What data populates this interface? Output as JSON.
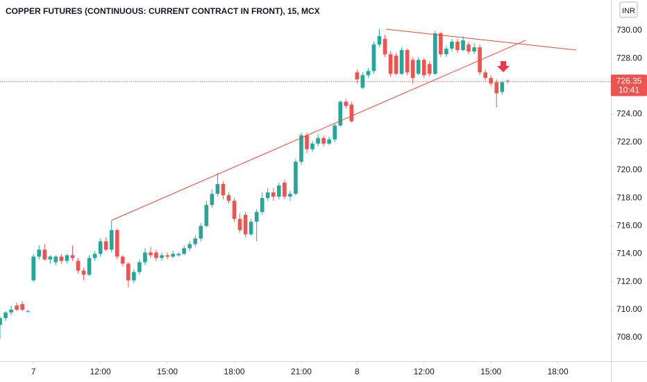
{
  "chart_data": {
    "type": "candlestick",
    "title": "COPPER FUTURES (CONTINUOUS: CURRENT CONTRACT IN FRONT), 15, MCX",
    "currency": "INR",
    "up_color": "#26a69a",
    "down_color": "#ef5350",
    "xlim": [
      0,
      109.5
    ],
    "xticks": [
      {
        "value": 6,
        "label": "7"
      },
      {
        "value": 18,
        "label": "12:00"
      },
      {
        "value": 30,
        "label": "15:00"
      },
      {
        "value": 42,
        "label": "18:00"
      },
      {
        "value": 54,
        "label": "21:00"
      },
      {
        "value": 64,
        "label": "8"
      },
      {
        "value": 76,
        "label": "12:00"
      },
      {
        "value": 88,
        "label": "15:00"
      },
      {
        "value": 100,
        "label": "18:00"
      }
    ],
    "ylim": [
      706.31,
      732.19
    ],
    "yticks": [
      {
        "value": 708,
        "label": "708.00"
      },
      {
        "value": 710,
        "label": "710.00"
      },
      {
        "value": 712,
        "label": "712.00"
      },
      {
        "value": 714,
        "label": "714.00"
      },
      {
        "value": 716,
        "label": "716.00"
      },
      {
        "value": 718,
        "label": "718.00"
      },
      {
        "value": 720,
        "label": "720.00"
      },
      {
        "value": 722,
        "label": "722.00"
      },
      {
        "value": 724,
        "label": "724.00"
      },
      {
        "value": 726,
        "label": "726.00"
      },
      {
        "value": 728,
        "label": "728.00"
      },
      {
        "value": 730,
        "label": "730.00"
      }
    ],
    "last_price": 726.35,
    "countdown": "10:41",
    "open": [
      708.9,
      709.4,
      709.8,
      710.3,
      710.4,
      709.9,
      712.1,
      713.8,
      714.3,
      713.6,
      713.4,
      713.8,
      713.5,
      713.9,
      713.5,
      712.8,
      712.5,
      713.7,
      714.0,
      714.9,
      714.3,
      715.7,
      713.8,
      713.3,
      712.1,
      712.7,
      713.4,
      714.1,
      714.1,
      713.7,
      713.9,
      713.8,
      713.9,
      714.0,
      714.4,
      714.7,
      715.1,
      716.0,
      717.5,
      718.3,
      719.0,
      718.2,
      717.8,
      716.5,
      716.8,
      715.4,
      716.3,
      717.0,
      718.0,
      718.4,
      718.1,
      719.1,
      718.1,
      718.3,
      720.6,
      722.5,
      721.5,
      721.9,
      722.3,
      721.9,
      722.2,
      723.2,
      724.9,
      724.7,
      727.0,
      725.9,
      726.8,
      727.1,
      729.0,
      729.4,
      728.3,
      728.2,
      726.9,
      728.6,
      727.9,
      726.9,
      727.9,
      727.6,
      726.9,
      729.8,
      728.3,
      728.7,
      729.2,
      728.6,
      729.0,
      728.5,
      728.8,
      727.0,
      726.6,
      726.3,
      725.6,
      726.4
    ],
    "high": [
      709.5,
      709.9,
      710.3,
      710.5,
      710.6,
      710.0,
      714.0,
      714.6,
      714.7,
      713.9,
      713.9,
      714.0,
      714.0,
      714.6,
      713.7,
      713.0,
      713.9,
      714.2,
      715.1,
      715.2,
      716.4,
      715.8,
      713.9,
      713.4,
      712.9,
      713.6,
      714.4,
      714.5,
      714.3,
      714.1,
      714.1,
      714.2,
      714.1,
      714.6,
      714.9,
      715.3,
      716.2,
      717.8,
      718.6,
      719.8,
      719.2,
      718.4,
      718.0,
      716.9,
      717.0,
      716.5,
      717.2,
      718.4,
      718.7,
      718.7,
      719.1,
      719.3,
      718.5,
      720.8,
      722.7,
      722.7,
      722.1,
      722.6,
      722.5,
      722.4,
      723.4,
      725.0,
      725.1,
      724.9,
      727.2,
      727.0,
      727.3,
      729.2,
      730.1,
      729.7,
      728.5,
      728.4,
      728.8,
      728.7,
      728.1,
      728.1,
      728.0,
      727.8,
      730.0,
      729.9,
      728.9,
      729.4,
      729.4,
      729.6,
      729.2,
      729.1,
      729.0,
      727.2,
      726.8,
      726.5,
      726.4,
      726.5
    ],
    "low": [
      707.9,
      709.2,
      709.6,
      709.9,
      709.9,
      709.8,
      712.0,
      713.6,
      713.5,
      713.3,
      713.2,
      713.3,
      713.3,
      713.5,
      712.6,
      712.1,
      712.4,
      713.5,
      713.8,
      714.2,
      714.1,
      713.6,
      713.1,
      711.6,
      711.9,
      712.5,
      713.2,
      713.7,
      713.5,
      713.5,
      713.6,
      713.7,
      713.8,
      713.9,
      714.2,
      714.5,
      714.9,
      715.9,
      717.3,
      718.1,
      717.9,
      717.6,
      716.3,
      715.5,
      715.2,
      715.3,
      714.9,
      716.8,
      717.8,
      717.8,
      717.9,
      717.9,
      717.8,
      718.2,
      720.4,
      721.2,
      721.3,
      721.7,
      721.7,
      721.8,
      722.0,
      723.1,
      724.4,
      723.4,
      726.2,
      725.8,
      726.6,
      726.9,
      728.8,
      728.1,
      726.7,
      726.8,
      726.8,
      726.8,
      726.2,
      726.8,
      726.6,
      726.7,
      726.8,
      728.1,
      728.1,
      728.5,
      728.4,
      728.5,
      728.3,
      728.3,
      726.8,
      726.4,
      726.0,
      724.5,
      725.4,
      726.2
    ],
    "close": [
      709.4,
      709.8,
      710.0,
      710.0,
      710.0,
      709.9,
      713.8,
      714.3,
      713.6,
      713.8,
      713.8,
      713.5,
      713.9,
      713.7,
      712.8,
      712.5,
      713.7,
      714.0,
      714.9,
      714.3,
      715.7,
      713.8,
      713.3,
      712.1,
      712.7,
      713.4,
      714.1,
      713.9,
      713.7,
      713.9,
      713.8,
      714.0,
      714.0,
      714.4,
      714.7,
      715.1,
      716.0,
      717.5,
      718.3,
      719.0,
      718.2,
      717.8,
      716.5,
      715.7,
      715.4,
      716.3,
      717.0,
      718.0,
      718.4,
      718.1,
      718.9,
      718.1,
      718.3,
      720.6,
      722.5,
      721.5,
      721.9,
      722.3,
      721.9,
      722.2,
      723.2,
      724.9,
      724.6,
      723.5,
      726.5,
      726.8,
      727.1,
      729.0,
      729.6,
      728.3,
      726.9,
      726.9,
      728.6,
      727.0,
      726.6,
      727.9,
      726.8,
      726.9,
      729.8,
      728.3,
      728.7,
      729.2,
      728.6,
      729.3,
      728.5,
      728.8,
      727.0,
      726.6,
      726.2,
      725.5,
      726.3,
      726.35
    ],
    "trendlines": [
      {
        "from": [
          20,
          716.4
        ],
        "to": [
          94.2,
          729.3
        ],
        "color": "#f44336"
      },
      {
        "from": [
          69.2,
          730.1
        ],
        "to": [
          103.3,
          728.6
        ],
        "color": "#f44336"
      }
    ]
  }
}
